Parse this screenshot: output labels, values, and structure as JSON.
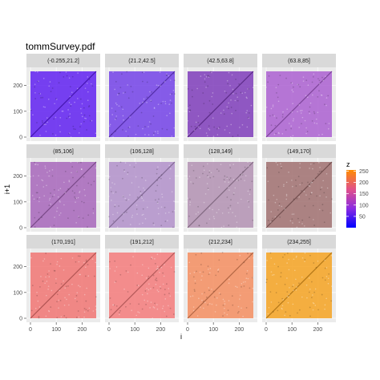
{
  "chart_data": {
    "type": "scatter",
    "title": "tommSurvey.pdf",
    "xlabel": "i",
    "ylabel": "i+1",
    "xlim": [
      0,
      255
    ],
    "ylim": [
      0,
      255
    ],
    "x_ticks": [
      0,
      100,
      200
    ],
    "y_ticks": [
      0,
      100,
      200
    ],
    "facet_layout": {
      "rows": 3,
      "cols": 4
    },
    "facets": [
      {
        "label": "(-0.255,21.2]",
        "z_mid": 10,
        "color": "#5a18f0"
      },
      {
        "label": "(21.2,42.5]",
        "z_mid": 32,
        "color": "#6e3ae6"
      },
      {
        "label": "(42.5,63.8]",
        "z_mid": 53,
        "color": "#7a36b8"
      },
      {
        "label": "(63.8,85]",
        "z_mid": 74,
        "color": "#a85ad0"
      },
      {
        "label": "(85,106]",
        "z_mid": 96,
        "color": "#a460b8"
      },
      {
        "label": "(106,128]",
        "z_mid": 117,
        "color": "#ae8cc8"
      },
      {
        "label": "(128,149]",
        "z_mid": 138,
        "color": "#b08eb0"
      },
      {
        "label": "(149,170]",
        "z_mid": 160,
        "color": "#9c6a6a"
      },
      {
        "label": "(170,191]",
        "z_mid": 181,
        "color": "#f0706e"
      },
      {
        "label": "(191,212]",
        "z_mid": 202,
        "color": "#f47676"
      },
      {
        "label": "(212,234]",
        "z_mid": 223,
        "color": "#f48a5a"
      },
      {
        "label": "(234,255]",
        "z_mid": 245,
        "color": "#f5a01a"
      }
    ],
    "legend": {
      "title": "z",
      "position": "right",
      "range": [
        0,
        255
      ],
      "ticks": [
        50,
        100,
        150,
        200,
        250
      ],
      "gradient": [
        "#0000ff",
        "#8a2be2",
        "#e0508c",
        "#ff8c00"
      ]
    },
    "grid": true
  }
}
